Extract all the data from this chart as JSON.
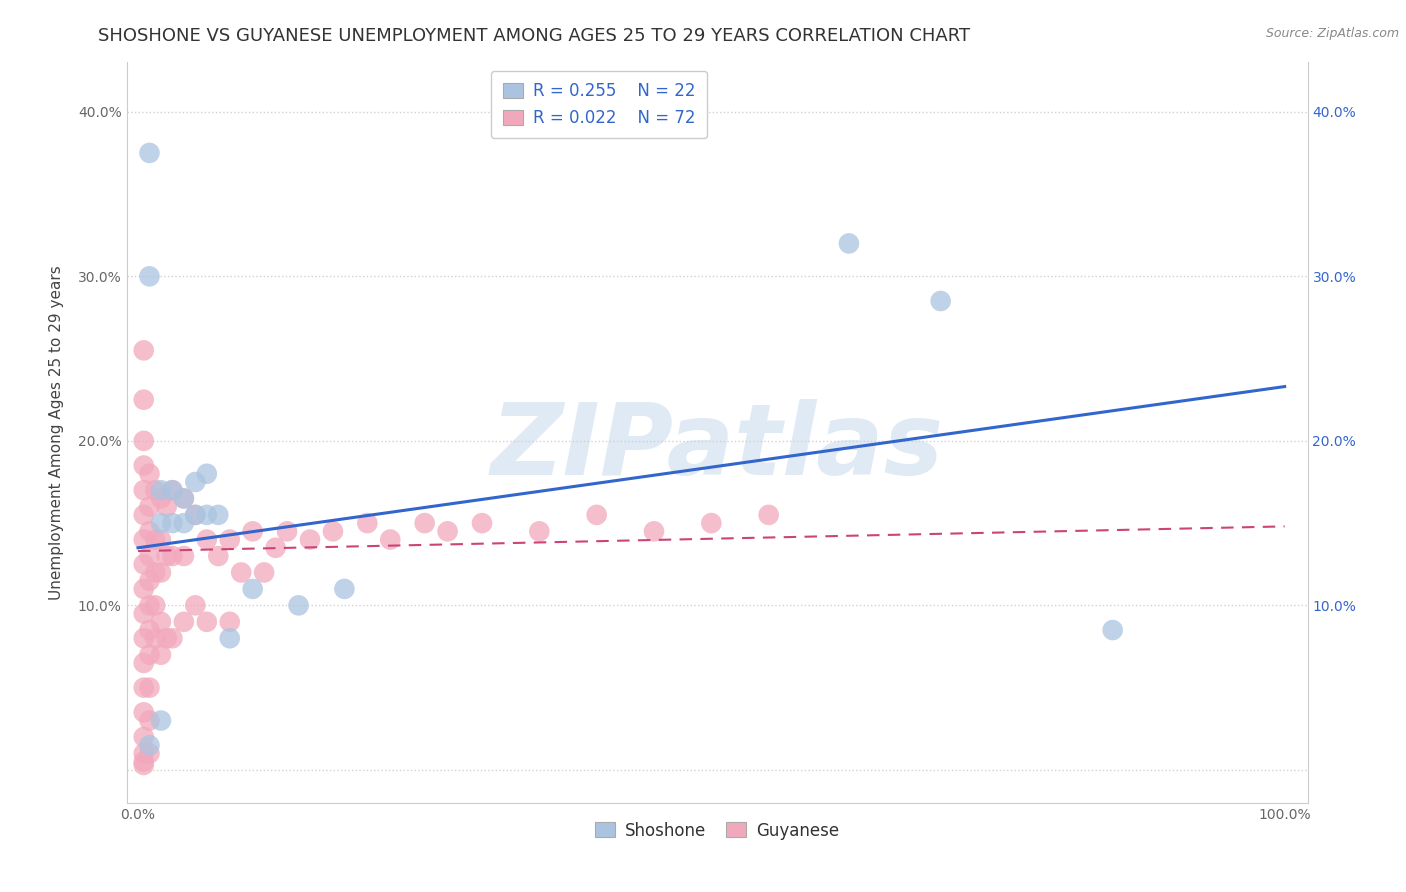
{
  "title": "SHOSHONE VS GUYANESE UNEMPLOYMENT AMONG AGES 25 TO 29 YEARS CORRELATION CHART",
  "source": "Source: ZipAtlas.com",
  "ylabel": "Unemployment Among Ages 25 to 29 years",
  "xlim": [
    -0.01,
    1.02
  ],
  "ylim": [
    -0.02,
    0.43
  ],
  "shoshone_R": 0.255,
  "shoshone_N": 22,
  "guyanese_R": 0.022,
  "guyanese_N": 72,
  "shoshone_color": "#aac4e0",
  "guyanese_color": "#f2a8bc",
  "shoshone_line_color": "#3366cc",
  "guyanese_line_color": "#cc4477",
  "watermark": "ZIPatlas",
  "watermark_color": "#ccdcee",
  "shoshone_x": [
    0.01,
    0.01,
    0.02,
    0.02,
    0.02,
    0.03,
    0.03,
    0.04,
    0.04,
    0.05,
    0.05,
    0.06,
    0.06,
    0.07,
    0.08,
    0.1,
    0.14,
    0.18,
    0.62,
    0.7,
    0.85,
    0.01
  ],
  "shoshone_y": [
    0.375,
    0.3,
    0.17,
    0.15,
    0.03,
    0.17,
    0.15,
    0.165,
    0.15,
    0.175,
    0.155,
    0.18,
    0.155,
    0.155,
    0.08,
    0.11,
    0.1,
    0.11,
    0.32,
    0.285,
    0.085,
    0.015
  ],
  "guyanese_x": [
    0.005,
    0.005,
    0.005,
    0.005,
    0.005,
    0.005,
    0.005,
    0.005,
    0.005,
    0.005,
    0.005,
    0.005,
    0.005,
    0.005,
    0.005,
    0.005,
    0.005,
    0.005,
    0.01,
    0.01,
    0.01,
    0.01,
    0.01,
    0.01,
    0.01,
    0.01,
    0.01,
    0.01,
    0.01,
    0.015,
    0.015,
    0.015,
    0.015,
    0.015,
    0.02,
    0.02,
    0.02,
    0.02,
    0.02,
    0.025,
    0.025,
    0.025,
    0.03,
    0.03,
    0.03,
    0.04,
    0.04,
    0.04,
    0.05,
    0.05,
    0.06,
    0.06,
    0.07,
    0.08,
    0.08,
    0.09,
    0.1,
    0.11,
    0.12,
    0.13,
    0.15,
    0.17,
    0.2,
    0.22,
    0.25,
    0.27,
    0.3,
    0.35,
    0.4,
    0.45,
    0.5,
    0.55
  ],
  "guyanese_y": [
    0.255,
    0.225,
    0.2,
    0.185,
    0.17,
    0.155,
    0.14,
    0.125,
    0.11,
    0.095,
    0.08,
    0.065,
    0.05,
    0.035,
    0.02,
    0.01,
    0.005,
    0.003,
    0.18,
    0.16,
    0.145,
    0.13,
    0.115,
    0.1,
    0.085,
    0.07,
    0.05,
    0.03,
    0.01,
    0.17,
    0.14,
    0.12,
    0.1,
    0.08,
    0.165,
    0.14,
    0.12,
    0.09,
    0.07,
    0.16,
    0.13,
    0.08,
    0.17,
    0.13,
    0.08,
    0.165,
    0.13,
    0.09,
    0.155,
    0.1,
    0.14,
    0.09,
    0.13,
    0.14,
    0.09,
    0.12,
    0.145,
    0.12,
    0.135,
    0.145,
    0.14,
    0.145,
    0.15,
    0.14,
    0.15,
    0.145,
    0.15,
    0.145,
    0.155,
    0.145,
    0.15,
    0.155
  ],
  "shoshone_line_start_y": 0.135,
  "shoshone_line_end_y": 0.233,
  "guyanese_line_start_y": 0.133,
  "guyanese_line_end_y": 0.148,
  "background_color": "#ffffff",
  "grid_color": "#cccccc",
  "title_fontsize": 13,
  "label_fontsize": 11,
  "tick_fontsize": 10,
  "legend_fontsize": 12
}
